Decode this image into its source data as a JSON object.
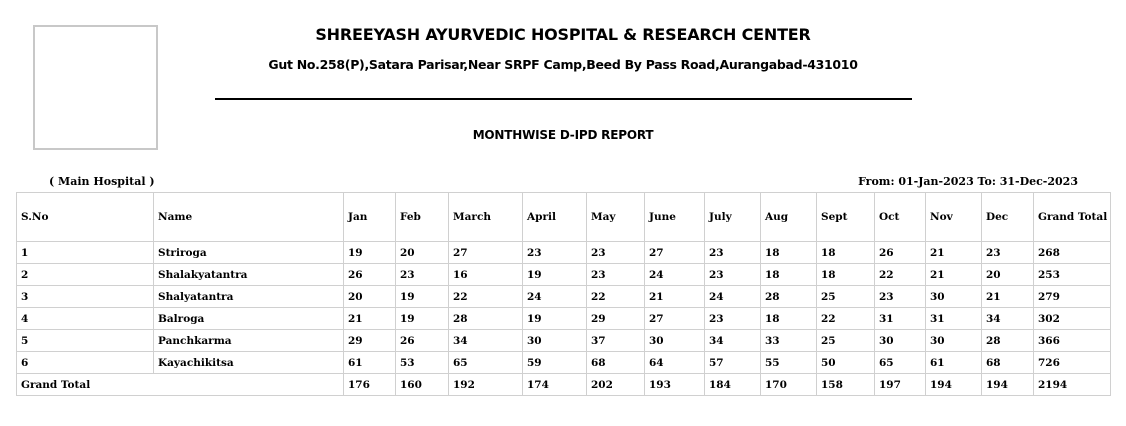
{
  "header": {
    "hospital_name": "SHREEYASH AYURVEDIC HOSPITAL & RESEARCH CENTER",
    "address": "Gut No.258(P),Satara Parisar,Near SRPF Camp,Beed By Pass Road,Aurangabad-431010",
    "report_title": "MONTHWISE D-IPD REPORT"
  },
  "meta": {
    "branch": "( Main Hospital )",
    "date_range": "From: 01-Jan-2023 To: 31-Dec-2023"
  },
  "table": {
    "columns": [
      "S.No",
      "Name",
      "Jan",
      "Feb",
      "March",
      "April",
      "May",
      "June",
      "July",
      "Aug",
      "Sept",
      "Oct",
      "Nov",
      "Dec",
      "Grand Total"
    ],
    "rows": [
      [
        "1",
        "Striroga",
        "19",
        "20",
        "27",
        "23",
        "23",
        "27",
        "23",
        "18",
        "18",
        "26",
        "21",
        "23",
        "268"
      ],
      [
        "2",
        "Shalakyatantra",
        "26",
        "23",
        "16",
        "19",
        "23",
        "24",
        "23",
        "18",
        "18",
        "22",
        "21",
        "20",
        "253"
      ],
      [
        "3",
        "Shalyatantra",
        "20",
        "19",
        "22",
        "24",
        "22",
        "21",
        "24",
        "28",
        "25",
        "23",
        "30",
        "21",
        "279"
      ],
      [
        "4",
        "Balroga",
        "21",
        "19",
        "28",
        "19",
        "29",
        "27",
        "23",
        "18",
        "22",
        "31",
        "31",
        "34",
        "302"
      ],
      [
        "5",
        "Panchkarma",
        "29",
        "26",
        "34",
        "30",
        "37",
        "30",
        "34",
        "33",
        "25",
        "30",
        "30",
        "28",
        "366"
      ],
      [
        "6",
        "Kayachikitsa",
        "61",
        "53",
        "65",
        "59",
        "68",
        "64",
        "57",
        "55",
        "50",
        "65",
        "61",
        "68",
        "726"
      ]
    ],
    "grand_total": {
      "label": "Grand Total",
      "values": [
        "176",
        "160",
        "192",
        "174",
        "202",
        "193",
        "184",
        "170",
        "158",
        "197",
        "194",
        "194",
        "2194"
      ]
    }
  }
}
